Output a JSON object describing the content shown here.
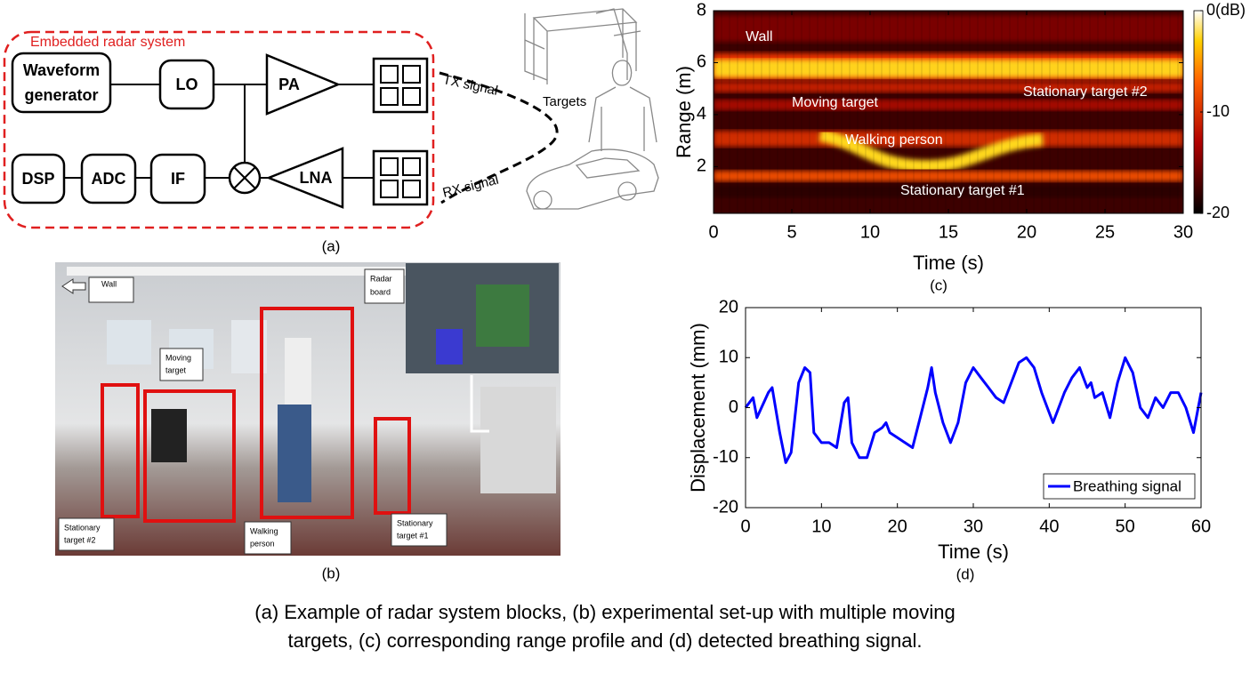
{
  "figure": {
    "panel_a": {
      "system_label": "Embedded radar system",
      "waveform_generator": [
        "Waveform",
        "generator"
      ],
      "lo": "LO",
      "pa": "PA",
      "dsp": "DSP",
      "adc": "ADC",
      "if": "IF",
      "lna": "LNA",
      "tx_signal": "TX signal",
      "rx_signal": "RX signal",
      "targets": "Targets",
      "panel_label": "(a)"
    },
    "panel_b": {
      "wall": "Wall",
      "radar_board": [
        "Radar",
        "board"
      ],
      "moving_target": [
        "Moving",
        "target"
      ],
      "stationary_target_2": [
        "Stationary",
        "target #2"
      ],
      "walking_person": [
        "Walking",
        "person"
      ],
      "stationary_target_1": [
        "Stationary",
        "target #1"
      ],
      "panel_label": "(b)"
    },
    "caption": [
      "(a) Example of radar system blocks, (b) experimental set-up with multiple moving",
      "targets, (c) corresponding range profile and (d) detected breathing signal."
    ]
  },
  "chart_data": [
    {
      "type": "heatmap",
      "colormap": "hot",
      "xlabel": "Time (s)",
      "ylabel": "Range (m)",
      "panel_label": "(c)",
      "xlim": [
        0,
        30
      ],
      "xticks": [
        0,
        5,
        10,
        15,
        20,
        25,
        30
      ],
      "ylim": [
        0.2,
        8
      ],
      "yticks": [
        2,
        4,
        6,
        8
      ],
      "clim": [
        -20,
        0
      ],
      "cticks": [
        {
          "value": 0,
          "label": "0(dB)"
        },
        -10,
        -20
      ],
      "annotations": [
        "Wall",
        "Moving target",
        "Stationary target #2",
        "Walking person",
        "Stationary target #1"
      ]
    },
    {
      "type": "line",
      "xlabel": "Time (s)",
      "ylabel": "Displacement (mm)",
      "panel_label": "(d)",
      "legend": "lower right",
      "xlim": [
        0,
        60
      ],
      "xticks": [
        0,
        10,
        20,
        30,
        40,
        50,
        60
      ],
      "ylim": [
        -20,
        20
      ],
      "yticks": [
        -20,
        -10,
        0,
        10,
        20
      ],
      "x": [
        0,
        1,
        1.5,
        3,
        3.5,
        4.5,
        5.3,
        6,
        7,
        7.8,
        8.5,
        9,
        10,
        11,
        12,
        13,
        13.5,
        14,
        15,
        16,
        17,
        18,
        18.5,
        19,
        20,
        21,
        22,
        23,
        24,
        24.5,
        25,
        26,
        27,
        28,
        29,
        30,
        31,
        32,
        33,
        34,
        35,
        36,
        37,
        38,
        39,
        40,
        40.5,
        41,
        42,
        43,
        44,
        45,
        45.5,
        46,
        47,
        48,
        49,
        50,
        51,
        52,
        53,
        54,
        55,
        56,
        57,
        58,
        59,
        60
      ],
      "series": [
        {
          "name": "Breathing signal",
          "color": "#0000ff",
          "values": [
            0,
            2,
            -2,
            3,
            4,
            -5,
            -11,
            -9,
            5,
            8,
            7,
            -5,
            -7,
            -7,
            -8,
            1,
            2,
            -7,
            -10,
            -10,
            -5,
            -4,
            -3,
            -5,
            -6,
            -7,
            -8,
            -2,
            4,
            8,
            3,
            -3,
            -7,
            -3,
            5,
            8,
            6,
            4,
            2,
            1,
            5,
            9,
            10,
            8,
            3,
            -1,
            -3,
            -1,
            3,
            6,
            8,
            4,
            5,
            2,
            3,
            -2,
            5,
            10,
            7,
            0,
            -2,
            2,
            0,
            3,
            3,
            0,
            -5,
            3
          ]
        }
      ]
    }
  ]
}
